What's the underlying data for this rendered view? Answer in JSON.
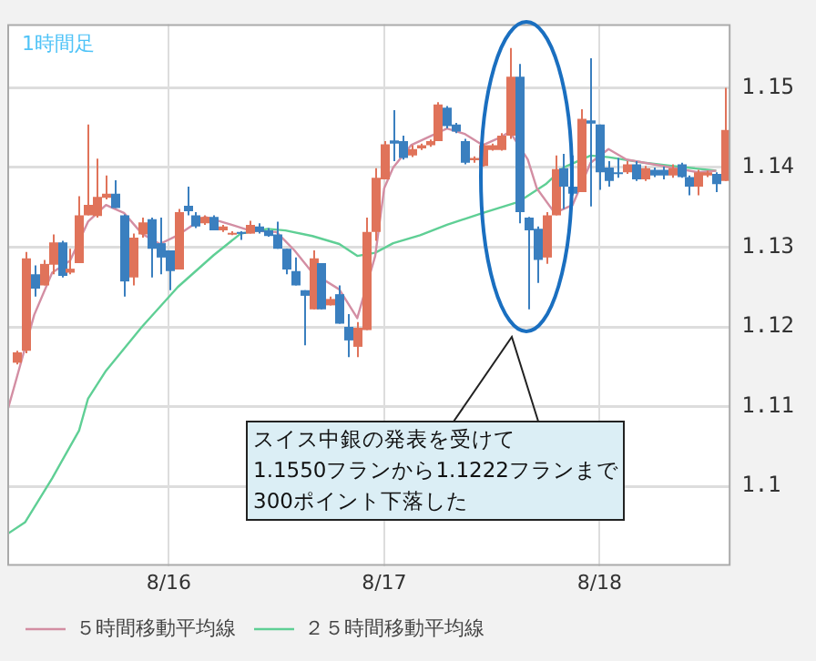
{
  "chart_data": {
    "type": "candlestick",
    "x": [
      "--08-15T07:00",
      "--08-15T08:00",
      "--08-15T09:00",
      "--08-15T10:00",
      "--08-15T11:00",
      "--08-15T12:00",
      "--08-15T13:00",
      "--08-15T14:00",
      "--08-15T15:00",
      "--08-15T16:00",
      "--08-15T17:00",
      "--08-15T18:00",
      "--08-15T19:00",
      "--08-15T20:00",
      "--08-15T21:00",
      "--08-15T22:00",
      "--08-15T23:00",
      "--08-16T00:00",
      "--08-16T01:00",
      "--08-16T02:00",
      "--08-16T03:00",
      "--08-16T04:00",
      "--08-16T05:00",
      "--08-16T06:00",
      "--08-16T07:00",
      "--08-16T08:00",
      "--08-16T09:00",
      "--08-16T10:00",
      "--08-16T11:00",
      "--08-16T12:00",
      "--08-16T13:00",
      "--08-16T14:00",
      "--08-16T15:00",
      "--08-16T16:00",
      "--08-16T17:00",
      "--08-16T18:00",
      "--08-16T19:00",
      "--08-16T20:00",
      "--08-16T21:00",
      "--08-16T22:00",
      "--08-16T23:00",
      "--08-17T00:00",
      "--08-17T01:00",
      "--08-17T02:00",
      "--08-17T03:00",
      "--08-17T04:00",
      "--08-17T05:00",
      "--08-17T06:00",
      "--08-17T07:00",
      "--08-17T08:00",
      "--08-17T09:00",
      "--08-17T10:00",
      "--08-17T11:00",
      "--08-17T12:00",
      "--08-17T13:00",
      "--08-17T14:00",
      "--08-17T15:00",
      "--08-17T16:00",
      "--08-17T17:00",
      "--08-17T18:00",
      "--08-17T19:00",
      "--08-17T20:00",
      "--08-17T21:00",
      "--08-17T22:00",
      "--08-17T23:00",
      "--08-18T00:00",
      "--08-18T01:00",
      "--08-18T02:00",
      "--08-18T03:00",
      "--08-18T04:00",
      "--08-18T05:00",
      "--08-18T06:00",
      "--08-18T07:00",
      "--08-18T08:00",
      "--08-18T09:00",
      "--08-18T10:00",
      "--08-18T11:00",
      "--08-18T12:00",
      "--08-18T13:00",
      "--08-18T14:00"
    ],
    "ohlc": [
      [
        1.1155,
        1.117,
        1.1153,
        1.1168
      ],
      [
        1.117,
        1.1294,
        1.1167,
        1.1286
      ],
      [
        1.1266,
        1.1277,
        1.1238,
        1.1248
      ],
      [
        1.1252,
        1.1284,
        1.1252,
        1.1279
      ],
      [
        1.1278,
        1.1316,
        1.1266,
        1.1306
      ],
      [
        1.1306,
        1.1308,
        1.1262,
        1.1264
      ],
      [
        1.1268,
        1.1298,
        1.1266,
        1.1273
      ],
      [
        1.128,
        1.1364,
        1.128,
        1.134
      ],
      [
        1.134,
        1.1454,
        1.134,
        1.1353
      ],
      [
        1.1339,
        1.1411,
        1.1337,
        1.1363
      ],
      [
        1.1362,
        1.139,
        1.136,
        1.1367
      ],
      [
        1.1367,
        1.1384,
        1.1349,
        1.1349
      ],
      [
        1.134,
        1.1341,
        1.1238,
        1.1257
      ],
      [
        1.1262,
        1.1317,
        1.1252,
        1.1312
      ],
      [
        1.1316,
        1.1337,
        1.1312,
        1.1331
      ],
      [
        1.1335,
        1.1337,
        1.1262,
        1.1298
      ],
      [
        1.1305,
        1.1337,
        1.1266,
        1.1287
      ],
      [
        1.1296,
        1.1296,
        1.1246,
        1.127
      ],
      [
        1.1272,
        1.1348,
        1.1272,
        1.1344
      ],
      [
        1.1352,
        1.1376,
        1.134,
        1.1345
      ],
      [
        1.134,
        1.1344,
        1.1324,
        1.1326
      ],
      [
        1.133,
        1.134,
        1.1328,
        1.1338
      ],
      [
        1.1338,
        1.134,
        1.1321,
        1.1321
      ],
      [
        1.1321,
        1.1328,
        1.1319,
        1.1326
      ],
      [
        1.1316,
        1.132,
        1.1315,
        1.1318
      ],
      [
        1.1319,
        1.132,
        1.1309,
        1.1317
      ],
      [
        1.1317,
        1.1333,
        1.1317,
        1.1328
      ],
      [
        1.1326,
        1.133,
        1.1317,
        1.1319
      ],
      [
        1.1321,
        1.1324,
        1.1313,
        1.1314
      ],
      [
        1.1316,
        1.1332,
        1.1298,
        1.1298
      ],
      [
        1.1298,
        1.1298,
        1.1266,
        1.1272
      ],
      [
        1.127,
        1.1287,
        1.1252,
        1.1252
      ],
      [
        1.1246,
        1.1246,
        1.1177,
        1.1239
      ],
      [
        1.1222,
        1.1296,
        1.1222,
        1.1286
      ],
      [
        1.128,
        1.128,
        1.1222,
        1.1222
      ],
      [
        1.1227,
        1.1238,
        1.1227,
        1.1235
      ],
      [
        1.1241,
        1.1252,
        1.1204,
        1.1204
      ],
      [
        1.12,
        1.1216,
        1.1162,
        1.1183
      ],
      [
        1.1175,
        1.1206,
        1.1162,
        1.1199
      ],
      [
        1.1196,
        1.1337,
        1.1196,
        1.1319
      ],
      [
        1.1319,
        1.1399,
        1.1308,
        1.1387
      ],
      [
        1.1385,
        1.1433,
        1.1385,
        1.1429
      ],
      [
        1.1434,
        1.1472,
        1.1408,
        1.143
      ],
      [
        1.1433,
        1.144,
        1.141,
        1.1412
      ],
      [
        1.1415,
        1.1428,
        1.1413,
        1.1423
      ],
      [
        1.1424,
        1.143,
        1.1422,
        1.1428
      ],
      [
        1.1428,
        1.1435,
        1.1426,
        1.1433
      ],
      [
        1.1433,
        1.1482,
        1.1433,
        1.1479
      ],
      [
        1.1475,
        1.1477,
        1.1449,
        1.1452
      ],
      [
        1.1454,
        1.1456,
        1.1443,
        1.1445
      ],
      [
        1.1433,
        1.1436,
        1.1404,
        1.1406
      ],
      [
        1.1409,
        1.1414,
        1.1406,
        1.1412
      ],
      [
        1.1402,
        1.143,
        1.1401,
        1.1428
      ],
      [
        1.1422,
        1.143,
        1.1421,
        1.1428
      ],
      [
        1.1422,
        1.1443,
        1.1421,
        1.144
      ],
      [
        1.144,
        1.155,
        1.1436,
        1.1514
      ],
      [
        1.1514,
        1.153,
        1.133,
        1.1344
      ],
      [
        1.1337,
        1.1338,
        1.1222,
        1.1321
      ],
      [
        1.1323,
        1.1326,
        1.1255,
        1.1284
      ],
      [
        1.1287,
        1.1344,
        1.1279,
        1.134
      ],
      [
        1.134,
        1.1415,
        1.134,
        1.1398
      ],
      [
        1.1399,
        1.1417,
        1.1348,
        1.1376
      ],
      [
        1.1376,
        1.1415,
        1.1365,
        1.1367
      ],
      [
        1.1369,
        1.1473,
        1.1369,
        1.1461
      ],
      [
        1.1459,
        1.1537,
        1.1351,
        1.1455
      ],
      [
        1.1454,
        1.1454,
        1.1372,
        1.1394
      ],
      [
        1.14,
        1.1408,
        1.1376,
        1.1383
      ],
      [
        1.1394,
        1.1412,
        1.1387,
        1.1392
      ],
      [
        1.1394,
        1.1408,
        1.1392,
        1.1404
      ],
      [
        1.1404,
        1.1408,
        1.1383,
        1.1385
      ],
      [
        1.1385,
        1.1402,
        1.1383,
        1.1399
      ],
      [
        1.1397,
        1.14,
        1.1388,
        1.139
      ],
      [
        1.1397,
        1.1401,
        1.1385,
        1.139
      ],
      [
        1.139,
        1.1404,
        1.1387,
        1.1399
      ],
      [
        1.1404,
        1.1406,
        1.1387,
        1.1388
      ],
      [
        1.1388,
        1.139,
        1.1365,
        1.1376
      ],
      [
        1.1376,
        1.1397,
        1.1365,
        1.1394
      ],
      [
        1.139,
        1.1396,
        1.1388,
        1.1394
      ],
      [
        1.1392,
        1.1394,
        1.1369,
        1.1379
      ],
      [
        1.1383,
        1.15,
        1.1383,
        1.1447
      ]
    ],
    "colors": [
      "#e0735a",
      "#e0735a",
      "#3a7fbf",
      "#e0735a",
      "#e0735a",
      "#3a7fbf",
      "#e0735a",
      "#e0735a",
      "#e0735a",
      "#e0735a",
      "#e0735a",
      "#3a7fbf",
      "#3a7fbf",
      "#e0735a",
      "#e0735a",
      "#3a7fbf",
      "#3a7fbf",
      "#3a7fbf",
      "#e0735a",
      "#3a7fbf",
      "#3a7fbf",
      "#e0735a",
      "#3a7fbf",
      "#e0735a",
      "#e0735a",
      "#3a7fbf",
      "#e0735a",
      "#3a7fbf",
      "#3a7fbf",
      "#3a7fbf",
      "#3a7fbf",
      "#3a7fbf",
      "#3a7fbf",
      "#e0735a",
      "#3a7fbf",
      "#e0735a",
      "#3a7fbf",
      "#3a7fbf",
      "#e0735a",
      "#e0735a",
      "#e0735a",
      "#e0735a",
      "#3a7fbf",
      "#3a7fbf",
      "#e0735a",
      "#e0735a",
      "#e0735a",
      "#e0735a",
      "#3a7fbf",
      "#3a7fbf",
      "#3a7fbf",
      "#e0735a",
      "#e0735a",
      "#e0735a",
      "#e0735a",
      "#e0735a",
      "#3a7fbf",
      "#3a7fbf",
      "#3a7fbf",
      "#e0735a",
      "#e0735a",
      "#3a7fbf",
      "#3a7fbf",
      "#e0735a",
      "#3a7fbf",
      "#3a7fbf",
      "#3a7fbf",
      "#3a7fbf",
      "#e0735a",
      "#3a7fbf",
      "#e0735a",
      "#3a7fbf",
      "#3a7fbf",
      "#e0735a",
      "#3a7fbf",
      "#3a7fbf",
      "#e0735a",
      "#e0735a",
      "#3a7fbf",
      "#e0735a"
    ],
    "series": [
      {
        "type": "line",
        "name": "５時間移動平均線",
        "color": "#d38ea3",
        "x": [
          "--08-15T06:00",
          "--08-15T07:00",
          "--08-15T09:00",
          "--08-15T11:00",
          "--08-15T13:00",
          "--08-15T15:00",
          "--08-15T17:00",
          "--08-15T19:00",
          "--08-15T21:00",
          "--08-15T23:00",
          "--08-16T01:00",
          "--08-16T04:00",
          "--08-16T07:00",
          "--08-16T09:00",
          "--08-16T12:00",
          "--08-16T14:00",
          "--08-16T16:00",
          "--08-16T19:00",
          "--08-16T21:00",
          "--08-16T23:00",
          "--08-17T00:00",
          "--08-17T01:00",
          "--08-17T03:00",
          "--08-17T07:00",
          "--08-17T09:00",
          "--08-17T11:00",
          "--08-17T13:00",
          "--08-17T14:00",
          "--08-17T16:00",
          "--08-17T17:00",
          "--08-17T19:00",
          "--08-17T21:00",
          "--08-17T23:00",
          "--08-18T01:00",
          "--08-18T03:00",
          "--08-18T07:00",
          "--08-18T11:00",
          "--08-18T13:00"
        ],
        "values": [
          1.1094,
          1.1134,
          1.1215,
          1.1268,
          1.1283,
          1.1332,
          1.1353,
          1.1343,
          1.1317,
          1.1304,
          1.1315,
          1.1338,
          1.1328,
          1.1321,
          1.1319,
          1.1296,
          1.1268,
          1.1247,
          1.1211,
          1.1289,
          1.1374,
          1.14,
          1.1428,
          1.1449,
          1.1442,
          1.1428,
          1.1438,
          1.1445,
          1.141,
          1.1374,
          1.1343,
          1.1353,
          1.1406,
          1.1423,
          1.141,
          1.1402,
          1.1394,
          1.1396
        ]
      },
      {
        "type": "line",
        "name": "２５時間移動平均線",
        "color": "#5fcf95",
        "x": [
          "--08-15T06:00",
          "--08-15T08:00",
          "--08-15T11:00",
          "--08-15T14:00",
          "--08-15T15:00",
          "--08-15T17:00",
          "--08-15T21:00",
          "--08-16T01:00",
          "--08-16T05:00",
          "--08-16T08:00",
          "--08-16T11:00",
          "--08-16T13:00",
          "--08-16T16:00",
          "--08-16T19:00",
          "--08-16T21:00",
          "--08-16T23:00",
          "--08-17T01:00",
          "--08-17T04:00",
          "--08-17T07:00",
          "--08-17T11:00",
          "--08-17T15:00",
          "--08-17T18:00",
          "--08-17T20:00",
          "--08-17T23:00",
          "--08-18T01:00",
          "--08-18T05:00",
          "--08-18T08:00",
          "--08-18T13:00"
        ],
        "values": [
          1.094,
          1.0955,
          1.101,
          1.107,
          1.111,
          1.1145,
          1.12,
          1.125,
          1.129,
          1.1317,
          1.1323,
          1.1321,
          1.1314,
          1.1304,
          1.1289,
          1.1293,
          1.1305,
          1.1315,
          1.1328,
          1.1343,
          1.1357,
          1.1379,
          1.14,
          1.1415,
          1.1413,
          1.1406,
          1.1402,
          1.1396
        ]
      }
    ],
    "xlim": [
      "--08-15T06:00",
      "--08-18T14:36"
    ],
    "xticks": [
      {
        "value": "--08-16",
        "label": "8/16"
      },
      {
        "value": "--08-17",
        "label": "8/17"
      },
      {
        "value": "--08-18",
        "label": "8/18"
      }
    ],
    "ylim": [
      1.09,
      1.158
    ],
    "yticks": [
      1.1,
      1.11,
      1.12,
      1.13,
      1.14,
      1.15
    ],
    "grid": true,
    "legend": "bottom left",
    "marker": "none",
    "line_style": "solid",
    "annotations": [
      "1時間足",
      "スイス中銀の発表を受けて\n1.1550フランから1.1222フランまで\n300ポイント下落した"
    ]
  }
}
